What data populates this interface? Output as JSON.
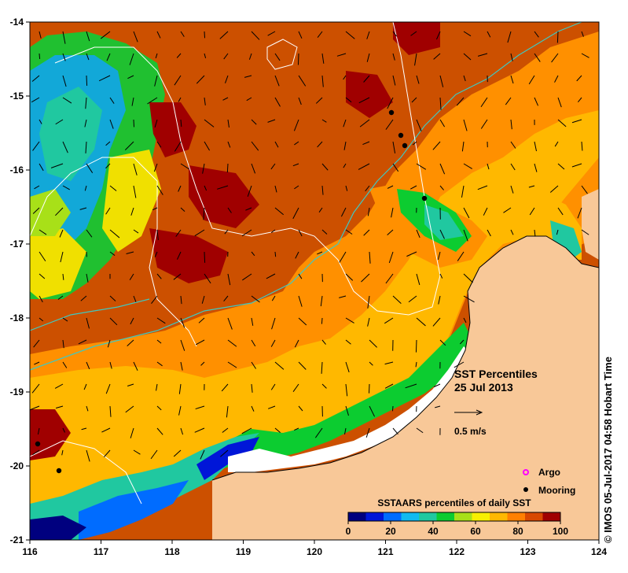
{
  "map": {
    "title_line1": "SST Percentiles",
    "title_line2": "25 Jul 2013",
    "vector_scale_label": "0.5 m/s",
    "credit": "© IMOS 05-Jul-2017 04:58 Hobart Time",
    "x_ticks": [
      "116",
      "117",
      "118",
      "119",
      "120",
      "121",
      "122",
      "123",
      "124"
    ],
    "y_ticks": [
      "-14",
      "-15",
      "-16",
      "-17",
      "-18",
      "-19",
      "-20",
      "-21"
    ],
    "colorbar_title": "SSTAARS percentiles of daily SST",
    "colorbar_ticks": [
      "0",
      "20",
      "40",
      "60",
      "80",
      "100"
    ],
    "colorbar_colors": [
      "#00007f",
      "#0016d8",
      "#006cff",
      "#12baf0",
      "#20c8a0",
      "#0ccc30",
      "#a8e018",
      "#f8f000",
      "#ffb800",
      "#ff8000",
      "#d84800",
      "#a00000"
    ]
  },
  "legend": {
    "argo_label": "Argo",
    "mooring_label": "Mooring",
    "argo_color": "#ff00ff",
    "mooring_color": "#000000"
  },
  "colors": {
    "land": "#f8c898",
    "warm_background": "#cc5000",
    "hot": "#a00000",
    "contour_white": "#ffffff",
    "contour_cyan": "#40c8c0"
  }
}
